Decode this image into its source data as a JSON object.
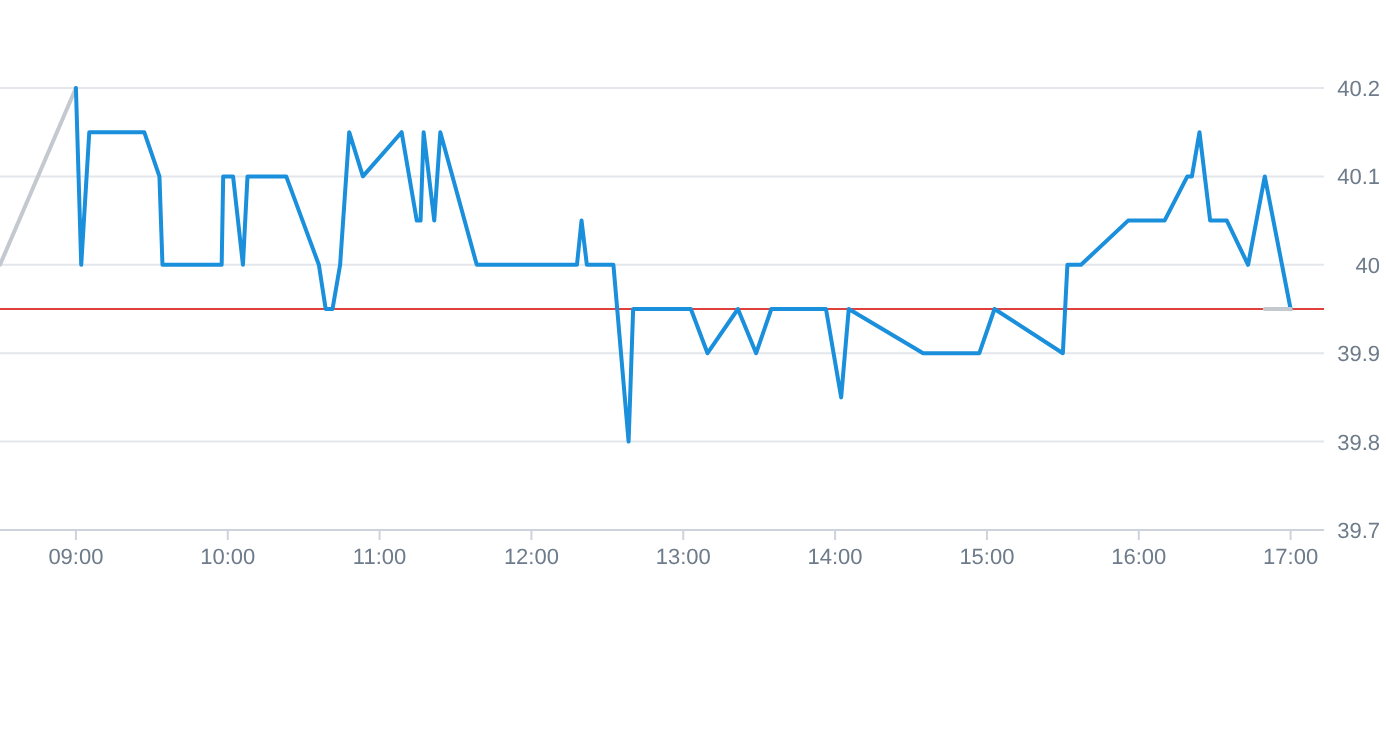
{
  "chart_data": {
    "type": "line",
    "xlim": [
      8.5,
      17.22
    ],
    "ylim": [
      39.7,
      40.2
    ],
    "xticks": [
      {
        "value": 9,
        "label": "09:00"
      },
      {
        "value": 10,
        "label": "10:00"
      },
      {
        "value": 11,
        "label": "11:00"
      },
      {
        "value": 12,
        "label": "12:00"
      },
      {
        "value": 13,
        "label": "13:00"
      },
      {
        "value": 14,
        "label": "14:00"
      },
      {
        "value": 15,
        "label": "15:00"
      },
      {
        "value": 16,
        "label": "16:00"
      },
      {
        "value": 17,
        "label": "17:00"
      }
    ],
    "yticks": [
      39.7,
      39.8,
      39.9,
      40,
      40.1,
      40.2
    ],
    "grid": "y",
    "marker": "none",
    "line_style": "solid",
    "ref_lines": [
      {
        "axis": "y",
        "value": 39.95,
        "label": null,
        "color": "#e0403a"
      }
    ],
    "series": [
      {
        "color": "#c3c9cf",
        "x": [
          8.5,
          9.0
        ],
        "values": [
          40.0,
          40.2
        ]
      },
      {
        "color": "#1a8fdc",
        "x": [
          9.0,
          9.035,
          9.088,
          9.45,
          9.55,
          9.57,
          9.96,
          9.97,
          10.035,
          10.1,
          10.13,
          10.385,
          10.6,
          10.645,
          10.69,
          10.74,
          10.8,
          10.89,
          11.145,
          11.245,
          11.27,
          11.29,
          11.36,
          11.4,
          11.64,
          12.3,
          12.33,
          12.365,
          12.54,
          12.64,
          12.67,
          13.05,
          13.16,
          13.36,
          13.48,
          13.58,
          13.94,
          14.04,
          14.09,
          14.58,
          14.95,
          15.05,
          15.5,
          15.53,
          15.62,
          15.93,
          16.17,
          16.32,
          16.35,
          16.4,
          16.47,
          16.58,
          16.72,
          16.83,
          17.0
        ],
        "values": [
          40.2,
          40.0,
          40.15,
          40.15,
          40.1,
          40.0,
          40.0,
          40.1,
          40.1,
          40.0,
          40.1,
          40.1,
          40.0,
          39.95,
          39.95,
          40.0,
          40.15,
          40.1,
          40.15,
          40.05,
          40.05,
          40.15,
          40.05,
          40.15,
          40.0,
          40.0,
          40.05,
          40.0,
          40.0,
          39.8,
          39.95,
          39.95,
          39.9,
          39.95,
          39.9,
          39.95,
          39.95,
          39.85,
          39.95,
          39.9,
          39.9,
          39.95,
          39.9,
          40.0,
          40.0,
          40.05,
          40.05,
          40.1,
          40.1,
          40.15,
          40.05,
          40.05,
          40.0,
          40.1,
          39.95
        ]
      },
      {
        "color": "#c3c9cf",
        "x": [
          16.83,
          17.0
        ],
        "values": [
          39.95,
          39.95
        ]
      }
    ]
  }
}
